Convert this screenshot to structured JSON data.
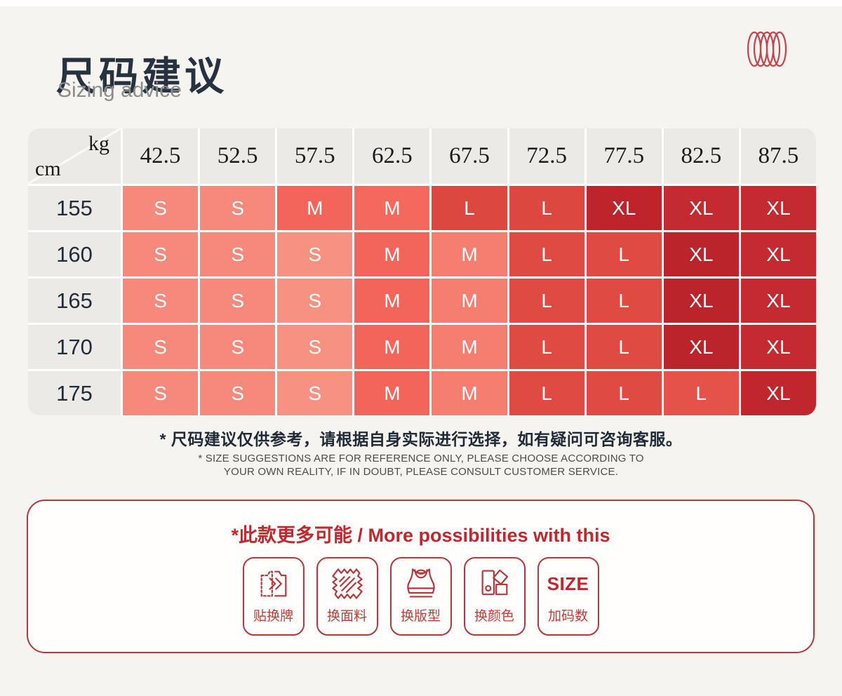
{
  "page": {
    "background": "#F6F4F0",
    "accent_red": "#B5363B"
  },
  "header": {
    "title_zh": "尺码建议",
    "subtitle_en": "Sizing advice"
  },
  "brand": {
    "logo_icon": "coil-icon",
    "logo_color": "#C4454B"
  },
  "size_table": {
    "corner_top_right": "kg",
    "corner_bottom_left": "cm",
    "weight_headers": [
      "42.5",
      "52.5",
      "57.5",
      "62.5",
      "67.5",
      "72.5",
      "77.5",
      "82.5",
      "87.5"
    ],
    "rows": [
      {
        "height": "155",
        "cells": [
          {
            "t": "S",
            "c": "#F6897B"
          },
          {
            "t": "S",
            "c": "#F6897B"
          },
          {
            "t": "M",
            "c": "#F3655B"
          },
          {
            "t": "M",
            "c": "#F4685E"
          },
          {
            "t": "L",
            "c": "#DC4740"
          },
          {
            "t": "L",
            "c": "#DC4740"
          },
          {
            "t": "XL",
            "c": "#BE252B"
          },
          {
            "t": "XL",
            "c": "#C32B30"
          },
          {
            "t": "XL",
            "c": "#C32B30"
          }
        ]
      },
      {
        "height": "160",
        "cells": [
          {
            "t": "S",
            "c": "#F6897B"
          },
          {
            "t": "S",
            "c": "#F6897B"
          },
          {
            "t": "S",
            "c": "#F79181"
          },
          {
            "t": "M",
            "c": "#F3655B"
          },
          {
            "t": "M",
            "c": "#F67E70"
          },
          {
            "t": "L",
            "c": "#DF4A42"
          },
          {
            "t": "L",
            "c": "#DF4A42"
          },
          {
            "t": "XL",
            "c": "#BA242A"
          },
          {
            "t": "XL",
            "c": "#C32B30"
          }
        ]
      },
      {
        "height": "165",
        "cells": [
          {
            "t": "S",
            "c": "#F6897B"
          },
          {
            "t": "S",
            "c": "#F6897B"
          },
          {
            "t": "S",
            "c": "#F79181"
          },
          {
            "t": "M",
            "c": "#F3655B"
          },
          {
            "t": "M",
            "c": "#F67E70"
          },
          {
            "t": "L",
            "c": "#DF4A42"
          },
          {
            "t": "L",
            "c": "#DF4A42"
          },
          {
            "t": "XL",
            "c": "#BA242A"
          },
          {
            "t": "XL",
            "c": "#C32B30"
          }
        ]
      },
      {
        "height": "170",
        "cells": [
          {
            "t": "S",
            "c": "#F6897B"
          },
          {
            "t": "S",
            "c": "#F6897B"
          },
          {
            "t": "S",
            "c": "#F79181"
          },
          {
            "t": "M",
            "c": "#F3655B"
          },
          {
            "t": "M",
            "c": "#F67E70"
          },
          {
            "t": "L",
            "c": "#DF4A42"
          },
          {
            "t": "L",
            "c": "#DF4A42"
          },
          {
            "t": "XL",
            "c": "#BA242A"
          },
          {
            "t": "XL",
            "c": "#C32B30"
          }
        ]
      },
      {
        "height": "175",
        "cells": [
          {
            "t": "S",
            "c": "#F6897B"
          },
          {
            "t": "S",
            "c": "#F6897B"
          },
          {
            "t": "S",
            "c": "#F79181"
          },
          {
            "t": "M",
            "c": "#F3655B"
          },
          {
            "t": "M",
            "c": "#F67E70"
          },
          {
            "t": "L",
            "c": "#DF4A42"
          },
          {
            "t": "L",
            "c": "#DF4A42"
          },
          {
            "t": "L",
            "c": "#E4524A"
          },
          {
            "t": "XL",
            "c": "#C0272D"
          }
        ]
      }
    ]
  },
  "footnote": {
    "zh": "* 尺码建议仅供参考，请根据自身实际进行选择，如有疑问可咨询客服。",
    "en_line1": "* SIZE SUGGESTIONS ARE FOR REFERENCE ONLY, PLEASE CHOOSE ACCORDING TO",
    "en_line2": "YOUR OWN REALITY, IF IN DOUBT, PLEASE CONSULT CUSTOMER SERVICE."
  },
  "possibilities": {
    "title": "*此款更多可能 / More possibilities with this",
    "title_color": "#C2272D",
    "badges": [
      {
        "label": "贴换牌",
        "icon": "tag-swap-icon"
      },
      {
        "label": "换面料",
        "icon": "fabric-swatch-icon"
      },
      {
        "label": "换版型",
        "icon": "sports-bra-icon"
      },
      {
        "label": "换颜色",
        "icon": "color-swatch-icon"
      },
      {
        "label": "加码数",
        "icon": "size-text-icon",
        "icon_text": "SIZE"
      }
    ]
  }
}
